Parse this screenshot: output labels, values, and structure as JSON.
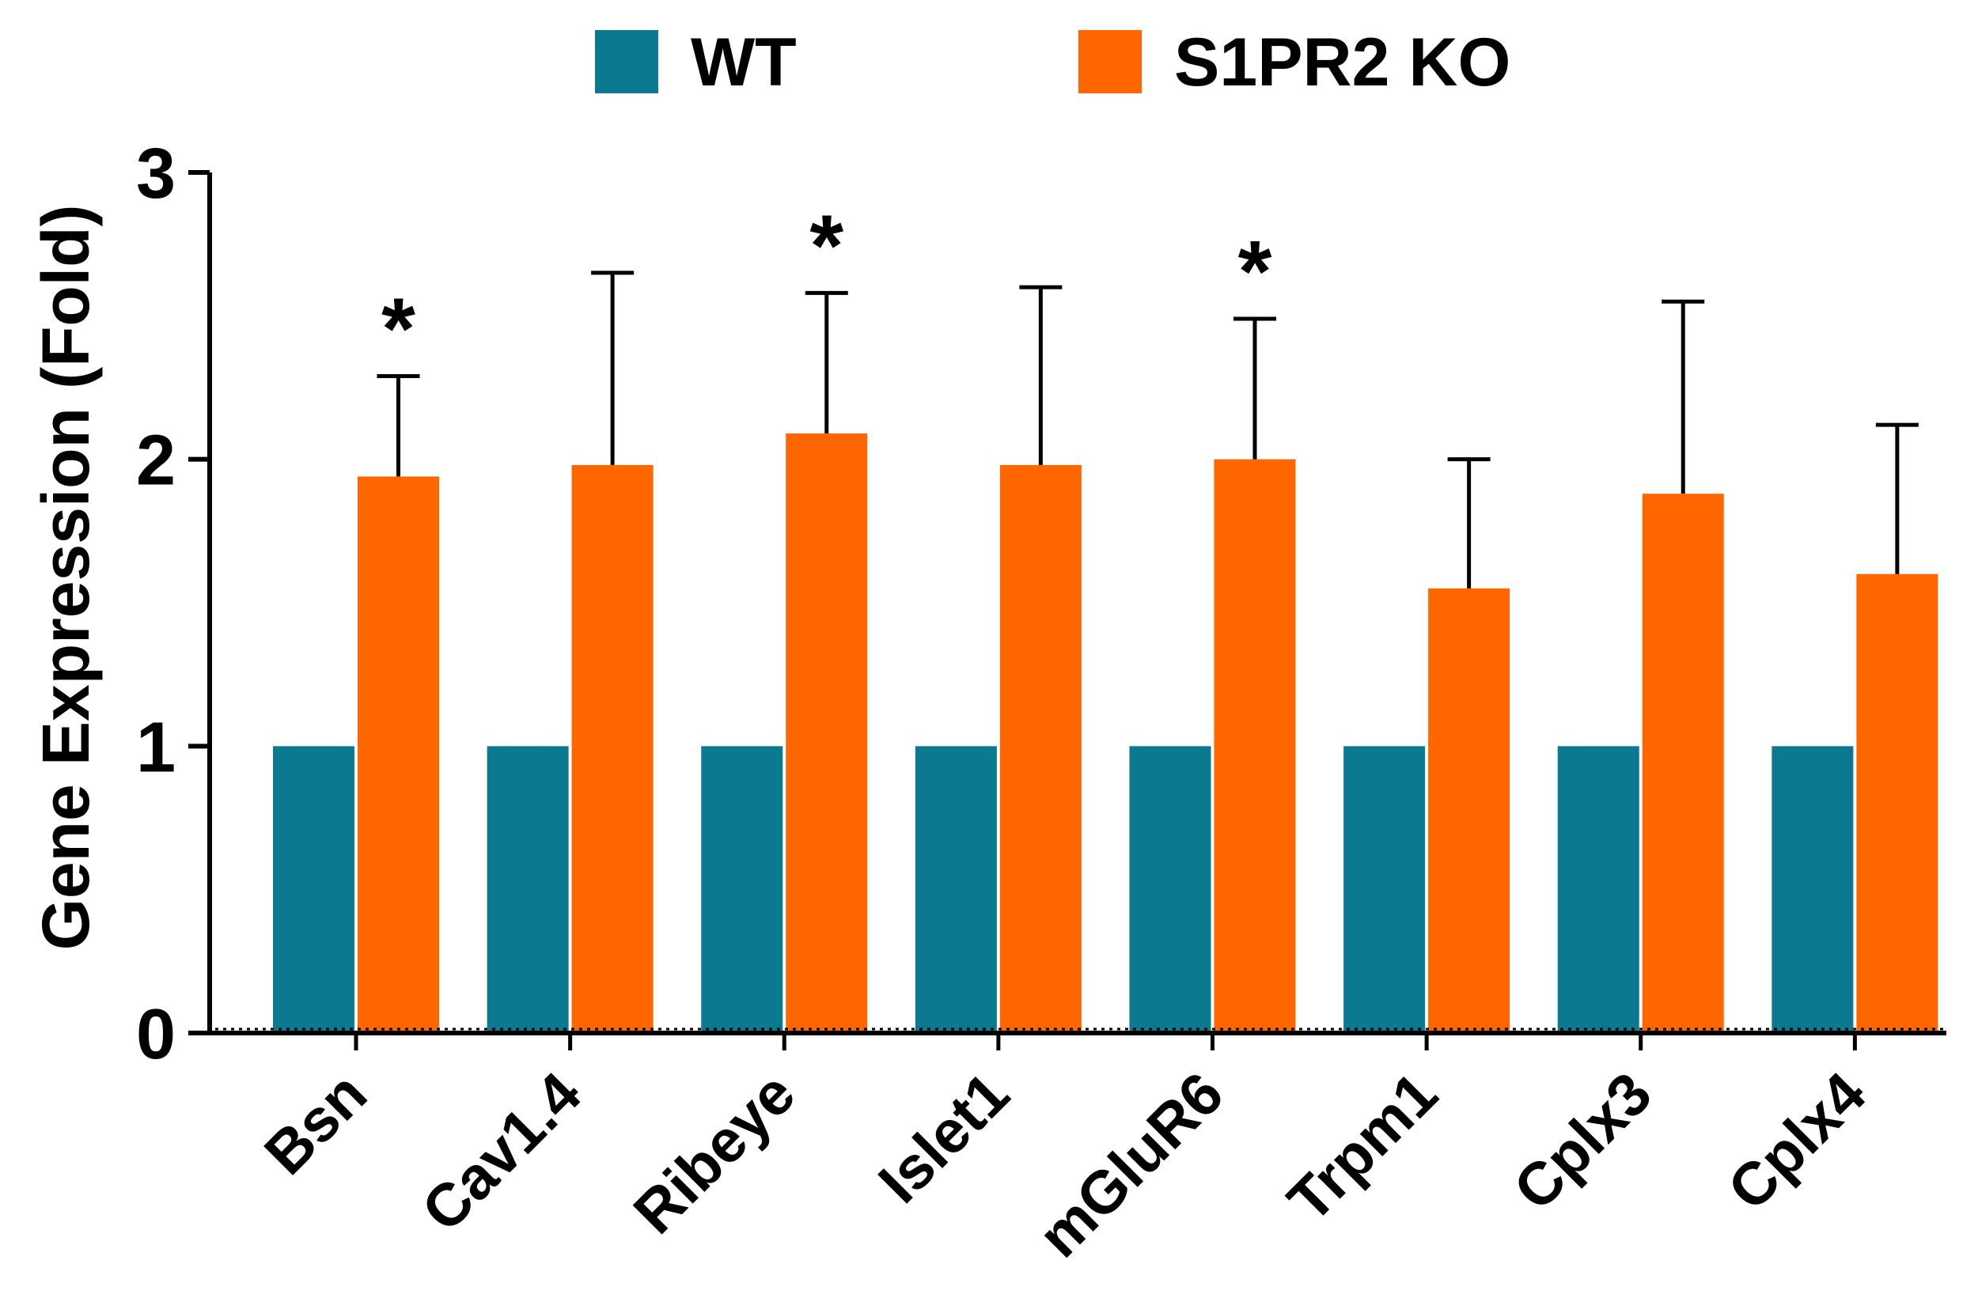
{
  "chart_data": {
    "type": "bar",
    "title": "",
    "xlabel": "",
    "ylabel": "Gene Expression (Fold)",
    "ylim": [
      0,
      3
    ],
    "yticks": [
      "0",
      "1",
      "2",
      "3"
    ],
    "grid": false,
    "legend_position": "top-center",
    "categories": [
      "Bsn",
      "Cav1.4",
      "Ribeye",
      "Islet1",
      "mGluR6",
      "Trpm1",
      "Cplx3",
      "Cplx4"
    ],
    "series": [
      {
        "name": "WT",
        "color": "#0b7a91",
        "values": [
          1,
          1,
          1,
          1,
          1,
          1,
          1,
          1
        ],
        "error": [
          0,
          0,
          0,
          0,
          0,
          0,
          0,
          0
        ]
      },
      {
        "name": "S1PR2 KO",
        "color": "#ff6600",
        "values": [
          1.94,
          1.98,
          2.09,
          1.98,
          2.0,
          1.55,
          1.88,
          1.6
        ],
        "error": [
          0.35,
          0.67,
          0.49,
          0.62,
          0.49,
          0.45,
          0.67,
          0.52
        ]
      }
    ],
    "significance": [
      "*",
      "",
      "*",
      "",
      "*",
      "",
      "",
      ""
    ]
  }
}
